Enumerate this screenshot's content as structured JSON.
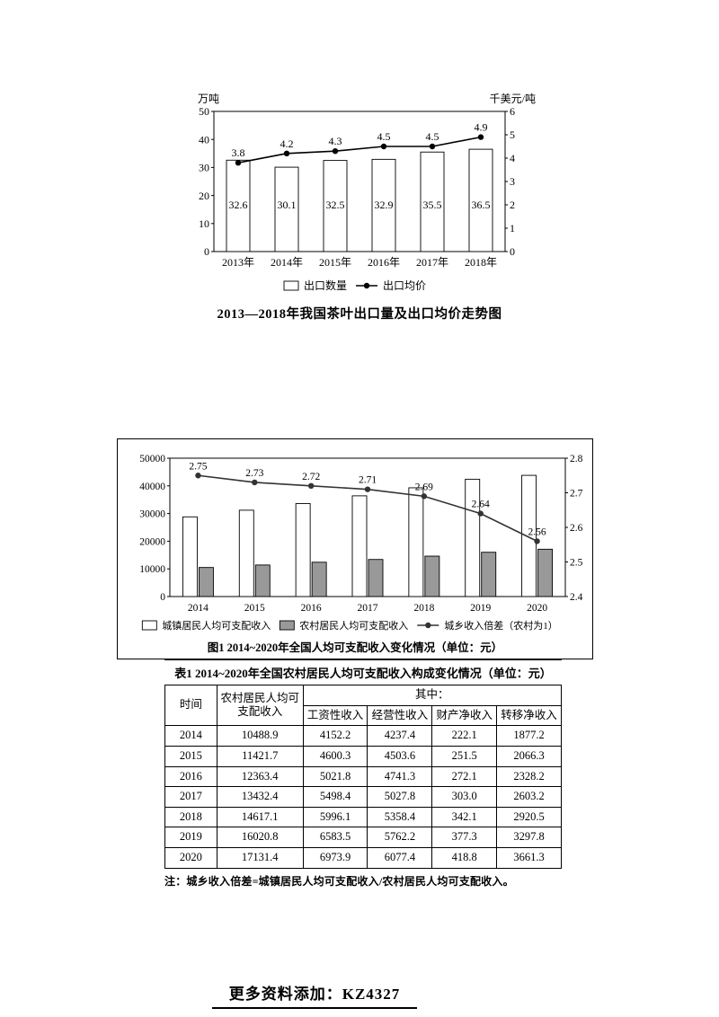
{
  "chart_data": [
    {
      "id": "tea-export",
      "type": "bar",
      "title": "2013—2018年我国茶叶出口量及出口均价走势图",
      "left_axis_label": "万吨",
      "right_axis_label": "千美元/吨",
      "categories": [
        "2013年",
        "2014年",
        "2015年",
        "2016年",
        "2017年",
        "2018年"
      ],
      "series": [
        {
          "name": "出口数量",
          "type": "bar",
          "axis": "left",
          "values": [
            32.6,
            30.1,
            32.5,
            32.9,
            35.5,
            36.5
          ],
          "fill": "#ffffff"
        },
        {
          "name": "出口均价",
          "type": "line",
          "axis": "right",
          "values": [
            3.8,
            4.2,
            4.3,
            4.5,
            4.5,
            4.9
          ],
          "color": "#000000"
        }
      ],
      "left_axis": {
        "min": 0,
        "max": 50,
        "ticks": [
          "0",
          "10",
          "20",
          "30",
          "40",
          "50"
        ]
      },
      "right_axis": {
        "min": 0,
        "max": 6,
        "ticks": [
          "0",
          "1",
          "2",
          "3",
          "4",
          "5",
          "6"
        ]
      },
      "legend_position": "bottom",
      "grid": false
    },
    {
      "id": "income",
      "type": "bar",
      "caption": "图1 2014~2020年全国人均可支配收入变化情况（单位：元）",
      "categories": [
        "2014",
        "2015",
        "2016",
        "2017",
        "2018",
        "2019",
        "2020"
      ],
      "series": [
        {
          "name": "城镇居民人均可支配收入",
          "type": "bar",
          "axis": "left",
          "values": [
            28800,
            31200,
            33600,
            36400,
            39300,
            42400,
            43800
          ],
          "fill": "#ffffff"
        },
        {
          "name": "农村居民人均可支配收入",
          "type": "bar",
          "axis": "left",
          "values": [
            10500,
            11400,
            12400,
            13400,
            14600,
            16000,
            17100
          ],
          "fill": "#999999"
        },
        {
          "name": "城乡收入倍差（农村为1）",
          "type": "line",
          "axis": "right",
          "values": [
            2.75,
            2.73,
            2.72,
            2.71,
            2.69,
            2.64,
            2.56
          ],
          "color": "#333333"
        }
      ],
      "left_axis": {
        "min": 0,
        "max": 50000,
        "ticks": [
          "0",
          "10000",
          "20000",
          "30000",
          "40000",
          "50000"
        ]
      },
      "right_axis": {
        "min": 2.4,
        "max": 2.8,
        "ticks": [
          "2.4",
          "2.5",
          "2.6",
          "2.7",
          "2.8"
        ]
      },
      "legend_position": "bottom",
      "grid": false
    }
  ],
  "table": {
    "title": "表1 2014~2020年全国农村居民人均可支配收入构成变化情况（单位：元）",
    "col_time": "时间",
    "col_total": "农村居民人均可支配收入",
    "group_header": "其中：",
    "sub_columns": [
      "工资性收入",
      "经营性收入",
      "财产净收入",
      "转移净收入"
    ],
    "rows": [
      [
        "2014",
        "10488.9",
        "4152.2",
        "4237.4",
        "222.1",
        "1877.2"
      ],
      [
        "2015",
        "11421.7",
        "4600.3",
        "4503.6",
        "251.5",
        "2066.3"
      ],
      [
        "2016",
        "12363.4",
        "5021.8",
        "4741.3",
        "272.1",
        "2328.2"
      ],
      [
        "2017",
        "13432.4",
        "5498.4",
        "5027.8",
        "303.0",
        "2603.2"
      ],
      [
        "2018",
        "14617.1",
        "5996.1",
        "5358.4",
        "342.1",
        "2920.5"
      ],
      [
        "2019",
        "16020.8",
        "6583.5",
        "5762.2",
        "377.3",
        "3297.8"
      ],
      [
        "2020",
        "17131.4",
        "6973.9",
        "6077.4",
        "418.8",
        "3661.3"
      ]
    ],
    "note": "注：城乡收入倍差=城镇居民人均可支配收入/农村居民人均可支配收入。"
  },
  "footer": {
    "text": "更多资料添加：KZ4327"
  }
}
